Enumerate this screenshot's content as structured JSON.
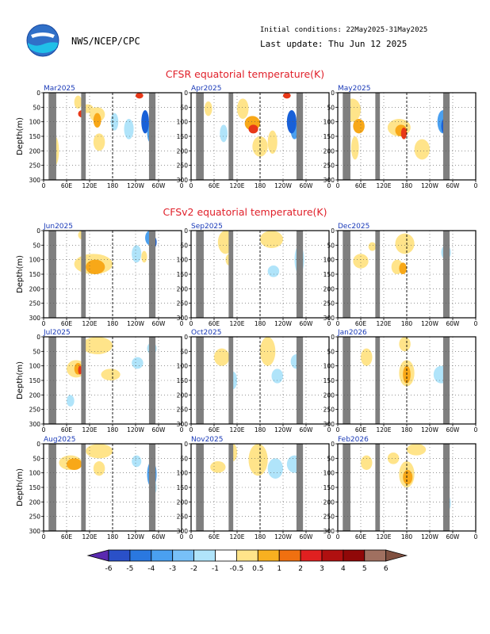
{
  "header": {
    "org": "NWS/NCEP/CPC",
    "initial_conditions": "Initial conditions: 22May2025-31May2025",
    "last_update": "Last update: Thu Jun 12 2025"
  },
  "sections": [
    {
      "title": "CFSR equatorial temperature(K)",
      "color": "#e0202a"
    },
    {
      "title": "CFSv2 equatorial temperature(K)",
      "color": "#e0202a"
    }
  ],
  "axes": {
    "ylabel": "Depth(m)",
    "y_ticks": [
      "0",
      "50",
      "100",
      "150",
      "200",
      "250",
      "300"
    ],
    "x_ticks": [
      "0",
      "60E",
      "120E",
      "180",
      "120W",
      "60W",
      "0"
    ],
    "ylim": [
      300,
      0
    ]
  },
  "colorbar": {
    "labels": [
      "-6",
      "-5",
      "-4",
      "-3",
      "-2",
      "-1",
      "-0.5",
      "0.5",
      "1",
      "2",
      "3",
      "4",
      "5",
      "6"
    ],
    "colors": [
      "#5a2ab0",
      "#2a50c8",
      "#2a78e0",
      "#4aa0f0",
      "#78c0f8",
      "#b0e4fa",
      "#ffffff",
      "#ffe48a",
      "#f8b020",
      "#f07010",
      "#e02020",
      "#b01010",
      "#900808",
      "#a07060",
      "#805040"
    ]
  },
  "chart_data": [
    {
      "type": "heatmap",
      "title": "Mar2025",
      "row": 0,
      "col": 0,
      "blobs": [
        [
          80,
          100,
          10,
          55,
          1
        ],
        [
          100,
          130,
          40,
          70,
          1
        ],
        [
          90,
          110,
          60,
          85,
          3
        ],
        [
          120,
          160,
          50,
          100,
          1
        ],
        [
          130,
          150,
          70,
          120,
          2
        ],
        [
          130,
          160,
          140,
          200,
          1
        ],
        [
          240,
          260,
          0,
          20,
          3
        ],
        [
          255,
          275,
          60,
          140,
          -3
        ],
        [
          270,
          285,
          100,
          170,
          -2
        ],
        [
          20,
          40,
          150,
          250,
          1
        ],
        [
          210,
          235,
          90,
          160,
          -1
        ],
        [
          175,
          195,
          70,
          130,
          -1
        ]
      ]
    },
    {
      "type": "heatmap",
      "title": "Apr2025",
      "row": 0,
      "col": 1,
      "blobs": [
        [
          35,
          55,
          30,
          80,
          1
        ],
        [
          120,
          150,
          20,
          90,
          1
        ],
        [
          140,
          180,
          80,
          130,
          2
        ],
        [
          150,
          175,
          110,
          140,
          3
        ],
        [
          160,
          200,
          150,
          220,
          1
        ],
        [
          240,
          260,
          0,
          20,
          3
        ],
        [
          250,
          275,
          60,
          140,
          -3
        ],
        [
          260,
          280,
          100,
          160,
          -2
        ],
        [
          75,
          95,
          110,
          170,
          -1
        ],
        [
          200,
          225,
          130,
          210,
          1
        ],
        [
          20,
          30,
          80,
          120,
          1
        ]
      ]
    },
    {
      "type": "heatmap",
      "title": "May2025",
      "row": 0,
      "col": 2,
      "blobs": [
        [
          15,
          60,
          20,
          100,
          1
        ],
        [
          40,
          70,
          90,
          140,
          2
        ],
        [
          130,
          190,
          90,
          150,
          1
        ],
        [
          150,
          180,
          110,
          150,
          2
        ],
        [
          165,
          180,
          120,
          160,
          3
        ],
        [
          260,
          290,
          60,
          140,
          -2
        ],
        [
          270,
          285,
          90,
          140,
          -3
        ],
        [
          200,
          240,
          160,
          230,
          1
        ],
        [
          35,
          55,
          150,
          230,
          1
        ]
      ]
    },
    {
      "type": "heatmap",
      "title": "Jun2025",
      "row": 1,
      "col": 0,
      "blobs": [
        [
          80,
          180,
          80,
          150,
          1
        ],
        [
          110,
          160,
          100,
          150,
          2
        ],
        [
          90,
          110,
          0,
          30,
          1
        ],
        [
          230,
          255,
          50,
          110,
          -1
        ],
        [
          265,
          290,
          0,
          50,
          -2
        ],
        [
          280,
          295,
          20,
          60,
          -3
        ],
        [
          15,
          30,
          150,
          220,
          -1
        ],
        [
          255,
          270,
          70,
          110,
          1
        ]
      ]
    },
    {
      "type": "heatmap",
      "title": "Sep2025",
      "row": 1,
      "col": 1,
      "blobs": [
        [
          70,
          110,
          0,
          80,
          1
        ],
        [
          180,
          240,
          0,
          60,
          1
        ],
        [
          270,
          295,
          50,
          150,
          -1
        ],
        [
          200,
          230,
          120,
          160,
          -1
        ],
        [
          90,
          110,
          80,
          120,
          1
        ]
      ]
    },
    {
      "type": "heatmap",
      "title": "Dec2025",
      "row": 1,
      "col": 2,
      "blobs": [
        [
          40,
          80,
          80,
          130,
          1
        ],
        [
          140,
          170,
          100,
          150,
          1
        ],
        [
          160,
          180,
          110,
          150,
          2
        ],
        [
          270,
          295,
          50,
          100,
          -1
        ],
        [
          80,
          100,
          40,
          70,
          1
        ],
        [
          150,
          200,
          10,
          80,
          1
        ]
      ]
    },
    {
      "type": "heatmap",
      "title": "Jul2025",
      "row": 2,
      "col": 0,
      "blobs": [
        [
          60,
          110,
          80,
          140,
          1
        ],
        [
          80,
          100,
          90,
          130,
          2
        ],
        [
          90,
          100,
          100,
          130,
          3
        ],
        [
          100,
          180,
          0,
          60,
          1
        ],
        [
          150,
          200,
          110,
          150,
          1
        ],
        [
          230,
          260,
          70,
          110,
          -1
        ],
        [
          270,
          295,
          20,
          60,
          -1
        ],
        [
          60,
          80,
          200,
          240,
          -1
        ]
      ]
    },
    {
      "type": "heatmap",
      "title": "Oct2025",
      "row": 2,
      "col": 1,
      "blobs": [
        [
          60,
          100,
          40,
          100,
          1
        ],
        [
          180,
          220,
          0,
          100,
          1
        ],
        [
          210,
          240,
          110,
          160,
          -1
        ],
        [
          260,
          290,
          60,
          110,
          -1
        ],
        [
          100,
          120,
          120,
          180,
          -1
        ]
      ]
    },
    {
      "type": "heatmap",
      "title": "Jan2026",
      "row": 2,
      "col": 2,
      "blobs": [
        [
          160,
          200,
          80,
          170,
          1
        ],
        [
          170,
          190,
          100,
          160,
          2
        ],
        [
          60,
          90,
          40,
          100,
          1
        ],
        [
          250,
          290,
          100,
          160,
          -1
        ],
        [
          160,
          190,
          0,
          50,
          1
        ]
      ]
    },
    {
      "type": "heatmap",
      "title": "Aug2025",
      "row": 3,
      "col": 0,
      "blobs": [
        [
          40,
          100,
          40,
          90,
          1
        ],
        [
          60,
          100,
          50,
          90,
          2
        ],
        [
          110,
          180,
          0,
          50,
          1
        ],
        [
          130,
          160,
          60,
          110,
          1
        ],
        [
          230,
          255,
          40,
          80,
          -1
        ],
        [
          270,
          295,
          60,
          150,
          -2
        ],
        [
          285,
          295,
          130,
          170,
          -1
        ]
      ]
    },
    {
      "type": "heatmap",
      "title": "Nov2025",
      "row": 3,
      "col": 1,
      "blobs": [
        [
          50,
          90,
          60,
          100,
          1
        ],
        [
          150,
          200,
          0,
          110,
          1
        ],
        [
          200,
          240,
          50,
          120,
          -1
        ],
        [
          250,
          290,
          40,
          100,
          -1
        ],
        [
          100,
          120,
          0,
          60,
          1
        ]
      ]
    },
    {
      "type": "heatmap",
      "title": "Feb2026",
      "row": 3,
      "col": 2,
      "blobs": [
        [
          160,
          200,
          60,
          150,
          1
        ],
        [
          170,
          195,
          90,
          140,
          2
        ],
        [
          60,
          90,
          40,
          90,
          1
        ],
        [
          280,
          295,
          180,
          230,
          -1
        ],
        [
          180,
          230,
          0,
          40,
          1
        ],
        [
          130,
          160,
          30,
          70,
          1
        ]
      ]
    }
  ]
}
